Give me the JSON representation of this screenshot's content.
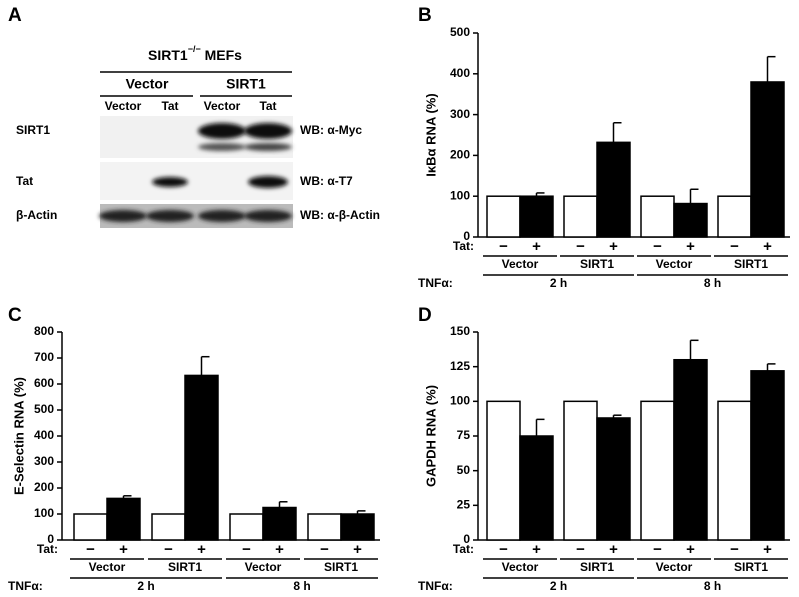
{
  "blot": {
    "panel_label": "A",
    "header_main": "SIRT1",
    "header_sup": "−/−",
    "header_rest": " MEFs",
    "groups": [
      "Vector",
      "SIRT1"
    ],
    "lanes": [
      "Vector",
      "Tat",
      "Vector",
      "Tat"
    ],
    "rows": [
      {
        "name": "SIRT1",
        "wb": "WB: α-Myc"
      },
      {
        "name": "Tat",
        "wb": "WB: α-T7"
      },
      {
        "name": "β-Actin",
        "wb": "WB: α-β-Actin"
      }
    ]
  },
  "chart_data": [
    {
      "type": "bar",
      "panel_label": "B",
      "y_label": "IκBα RNA (%)",
      "tat_label": "Tat:",
      "tnf_label": "TNFα:",
      "categories": [
        "−",
        "+",
        "−",
        "+",
        "−",
        "+",
        "−",
        "+"
      ],
      "groups": [
        "Vector",
        "SIRT1",
        "Vector",
        "SIRT1"
      ],
      "times": [
        "2 h",
        "8 h"
      ],
      "values": [
        100,
        100,
        100,
        232,
        100,
        82,
        100,
        380
      ],
      "errors": [
        null,
        8,
        null,
        48,
        null,
        35,
        null,
        62
      ],
      "colors": [
        "#ffffff",
        "#000000",
        "#ffffff",
        "#000000",
        "#ffffff",
        "#000000",
        "#ffffff",
        "#000000"
      ],
      "ylim": [
        0,
        500
      ],
      "yticks": [
        0,
        100,
        200,
        300,
        400,
        500
      ]
    },
    {
      "type": "bar",
      "panel_label": "C",
      "y_label": "E-Selectin RNA (%)",
      "tat_label": "Tat:",
      "tnf_label": "TNFα:",
      "categories": [
        "−",
        "+",
        "−",
        "+",
        "−",
        "+",
        "−",
        "+"
      ],
      "groups": [
        "Vector",
        "SIRT1",
        "Vector",
        "SIRT1"
      ],
      "times": [
        "2 h",
        "8 h"
      ],
      "values": [
        100,
        160,
        100,
        633,
        100,
        125,
        100,
        100
      ],
      "errors": [
        null,
        10,
        null,
        72,
        null,
        22,
        null,
        12
      ],
      "colors": [
        "#ffffff",
        "#000000",
        "#ffffff",
        "#000000",
        "#ffffff",
        "#000000",
        "#ffffff",
        "#000000"
      ],
      "ylim": [
        0,
        800
      ],
      "yticks": [
        0,
        100,
        200,
        300,
        400,
        500,
        600,
        700,
        800
      ]
    },
    {
      "type": "bar",
      "panel_label": "D",
      "y_label": "GAPDH RNA (%)",
      "tat_label": "Tat:",
      "tnf_label": "TNFα:",
      "categories": [
        "−",
        "+",
        "−",
        "+",
        "−",
        "+",
        "−",
        "+"
      ],
      "groups": [
        "Vector",
        "SIRT1",
        "Vector",
        "SIRT1"
      ],
      "times": [
        "2 h",
        "8 h"
      ],
      "values": [
        100,
        75,
        100,
        88,
        100,
        130,
        100,
        122
      ],
      "errors": [
        null,
        12,
        null,
        2,
        null,
        14,
        null,
        5
      ],
      "colors": [
        "#ffffff",
        "#000000",
        "#ffffff",
        "#000000",
        "#ffffff",
        "#000000",
        "#ffffff",
        "#000000"
      ],
      "ylim": [
        0,
        150
      ],
      "yticks": [
        0,
        25,
        50,
        75,
        100,
        125,
        150
      ]
    }
  ]
}
